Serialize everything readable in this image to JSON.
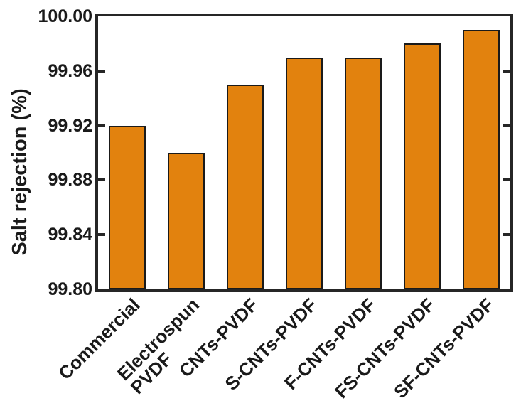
{
  "figure": {
    "background": "#ffffff"
  },
  "chart_data": {
    "type": "bar",
    "title": "",
    "xlabel": "",
    "ylabel": "Salt rejection (%)",
    "categories": [
      "Commercial",
      "Electrospun\nPVDF",
      "CNTs-PVDF",
      "S-CNTs-PVDF",
      "F-CNTs-PVDF",
      "FS-CNTs-PVDF",
      "SF-CNTs-PVDF"
    ],
    "values": [
      99.92,
      99.9,
      99.95,
      99.97,
      99.97,
      99.98,
      99.99
    ],
    "ylim": [
      99.8,
      100.0
    ],
    "ytick_step": 0.04,
    "ytick_labels": [
      "99.80",
      "99.84",
      "99.88",
      "99.92",
      "99.96",
      "100.00"
    ],
    "grid": false,
    "legend": null,
    "bar_color": "#E2820E",
    "bar_edge_color": "#1a1a1a",
    "axis_color": "#262626",
    "text_color": "#1a1a1a"
  }
}
